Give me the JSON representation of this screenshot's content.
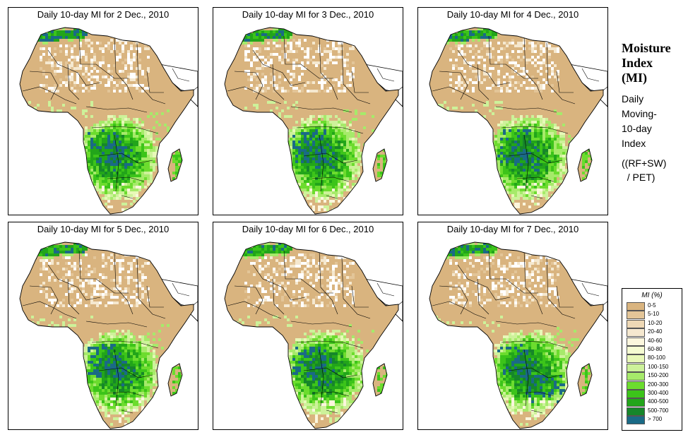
{
  "panels": [
    {
      "title": "Daily 10-day MI for  2 Dec., 2010"
    },
    {
      "title": "Daily 10-day MI for  3 Dec., 2010"
    },
    {
      "title": "Daily 10-day MI for  4 Dec., 2010"
    },
    {
      "title": "Daily 10-day MI for  5 Dec., 2010"
    },
    {
      "title": "Daily 10-day MI for  6 Dec., 2010"
    },
    {
      "title": "Daily 10-day MI for  7 Dec., 2010"
    }
  ],
  "side_note": {
    "title_lines": [
      "Moisture",
      "Index",
      "(MI)"
    ],
    "sub_lines": [
      "Daily",
      "Moving-",
      "10-day",
      "Index"
    ],
    "formula_lines": [
      "((RF+SW)",
      "  / PET)"
    ]
  },
  "legend": {
    "title": "MI (%)",
    "items": [
      {
        "label": "0-5",
        "color": "#d9b47f"
      },
      {
        "label": "5-10",
        "color": "#e3c598"
      },
      {
        "label": "10-20",
        "color": "#eed8b5"
      },
      {
        "label": "20-40",
        "color": "#f5e8cf"
      },
      {
        "label": "40-60",
        "color": "#fbf6dd"
      },
      {
        "label": "60-80",
        "color": "#f5fbd2"
      },
      {
        "label": "80-100",
        "color": "#e8f8b8"
      },
      {
        "label": "100-150",
        "color": "#cdf29a"
      },
      {
        "label": "150-200",
        "color": "#a6ea6a"
      },
      {
        "label": "200-300",
        "color": "#6cdc2e"
      },
      {
        "label": "300-400",
        "color": "#3cc41a"
      },
      {
        "label": "400-500",
        "color": "#22a51a"
      },
      {
        "label": "500-700",
        "color": "#16862a"
      },
      {
        "label": "> 700",
        "color": "#1a6a86"
      }
    ]
  }
}
